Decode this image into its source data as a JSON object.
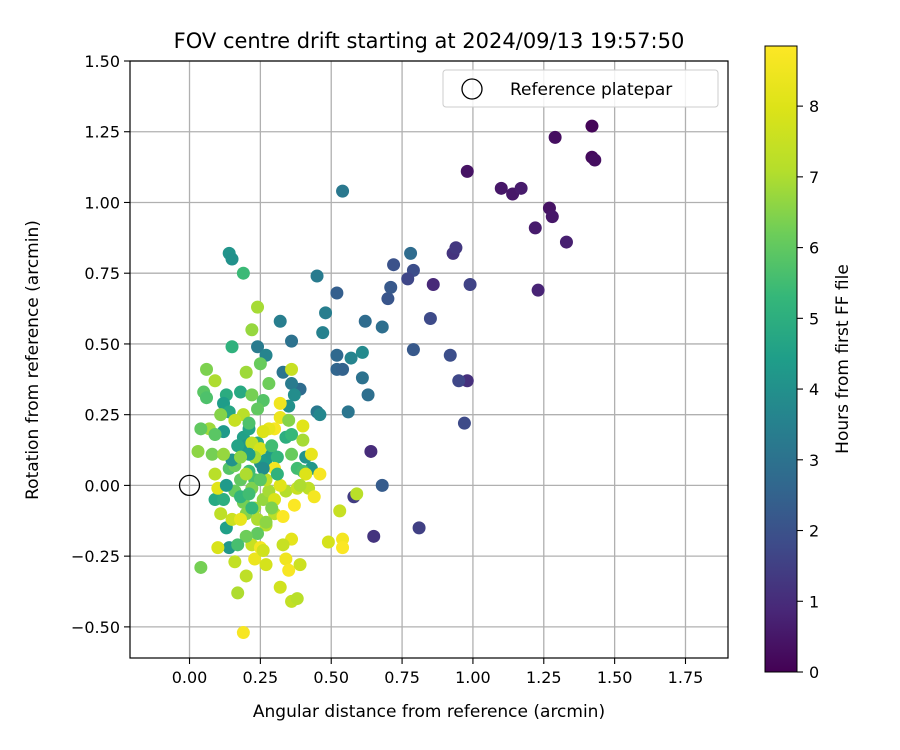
{
  "chart_data": {
    "type": "scatter",
    "title": "FOV centre drift starting at 2024/09/13 19:57:50",
    "xlabel": "Angular distance from reference (arcmin)",
    "ylabel": "Rotation from reference (arcmin)",
    "xlim": [
      -0.21,
      1.9
    ],
    "ylim": [
      -0.61,
      1.5
    ],
    "xticks": [
      "0.00",
      "0.25",
      "0.50",
      "0.75",
      "1.00",
      "1.25",
      "1.50",
      "1.75"
    ],
    "xtick_values": [
      0,
      0.25,
      0.5,
      0.75,
      1.0,
      1.25,
      1.5,
      1.75
    ],
    "yticks": [
      "1.50",
      "1.25",
      "1.00",
      "0.75",
      "0.50",
      "0.25",
      "0.00",
      "−0.25",
      "−0.50"
    ],
    "ytick_values": [
      1.5,
      1.25,
      1.0,
      0.75,
      0.5,
      0.25,
      0.0,
      -0.25,
      -0.5
    ],
    "grid": true,
    "legend": {
      "position": "top-right",
      "label": "Reference platepar"
    },
    "reference_point": {
      "x": 0.0,
      "y": 0.0
    },
    "colorbar": {
      "label": "Hours from first FF file",
      "min": 0,
      "max": 8.85,
      "ticks": [
        "0",
        "1",
        "2",
        "3",
        "4",
        "5",
        "6",
        "7",
        "8"
      ],
      "tick_values": [
        0,
        1,
        2,
        3,
        4,
        5,
        6,
        7,
        8
      ],
      "colormap": "viridis"
    },
    "points": [
      {
        "x": 1.42,
        "y": 1.27,
        "h": 0.1
      },
      {
        "x": 1.42,
        "y": 1.16,
        "h": 0.2
      },
      {
        "x": 1.43,
        "y": 1.15,
        "h": 0.3
      },
      {
        "x": 1.29,
        "y": 1.23,
        "h": 0.3
      },
      {
        "x": 0.98,
        "y": 1.11,
        "h": 0.4
      },
      {
        "x": 1.1,
        "y": 1.05,
        "h": 0.5
      },
      {
        "x": 1.14,
        "y": 1.03,
        "h": 0.5
      },
      {
        "x": 1.17,
        "y": 1.05,
        "h": 0.6
      },
      {
        "x": 1.27,
        "y": 0.98,
        "h": 0.4
      },
      {
        "x": 1.28,
        "y": 0.95,
        "h": 0.5
      },
      {
        "x": 1.22,
        "y": 0.91,
        "h": 0.6
      },
      {
        "x": 1.33,
        "y": 0.86,
        "h": 0.7
      },
      {
        "x": 1.23,
        "y": 0.69,
        "h": 0.8
      },
      {
        "x": 0.86,
        "y": 0.71,
        "h": 0.9
      },
      {
        "x": 0.93,
        "y": 0.82,
        "h": 1.2
      },
      {
        "x": 0.94,
        "y": 0.84,
        "h": 1.3
      },
      {
        "x": 0.98,
        "y": 0.37,
        "h": 1.1
      },
      {
        "x": 0.64,
        "y": 0.12,
        "h": 1.0
      },
      {
        "x": 0.65,
        "y": -0.18,
        "h": 1.2
      },
      {
        "x": 0.58,
        "y": -0.04,
        "h": 1.4
      },
      {
        "x": 0.81,
        "y": -0.15,
        "h": 1.5
      },
      {
        "x": 0.99,
        "y": 0.71,
        "h": 1.6
      },
      {
        "x": 0.95,
        "y": 0.37,
        "h": 1.7
      },
      {
        "x": 0.97,
        "y": 0.22,
        "h": 1.8
      },
      {
        "x": 0.92,
        "y": 0.46,
        "h": 1.9
      },
      {
        "x": 0.85,
        "y": 0.59,
        "h": 1.8
      },
      {
        "x": 0.79,
        "y": 0.76,
        "h": 1.9
      },
      {
        "x": 0.77,
        "y": 0.73,
        "h": 1.7
      },
      {
        "x": 0.72,
        "y": 0.78,
        "h": 2.0
      },
      {
        "x": 0.7,
        "y": 0.66,
        "h": 2.1
      },
      {
        "x": 0.71,
        "y": 0.7,
        "h": 2.2
      },
      {
        "x": 0.79,
        "y": 0.48,
        "h": 2.2
      },
      {
        "x": 0.68,
        "y": 0.0,
        "h": 2.3
      },
      {
        "x": 0.52,
        "y": 0.68,
        "h": 2.4
      },
      {
        "x": 0.78,
        "y": 0.82,
        "h": 2.8
      },
      {
        "x": 0.68,
        "y": 0.56,
        "h": 2.9
      },
      {
        "x": 0.62,
        "y": 0.58,
        "h": 2.8
      },
      {
        "x": 0.52,
        "y": 0.46,
        "h": 2.7
      },
      {
        "x": 0.52,
        "y": 0.41,
        "h": 2.6
      },
      {
        "x": 0.54,
        "y": 0.41,
        "h": 2.5
      },
      {
        "x": 0.61,
        "y": 0.38,
        "h": 3.0
      },
      {
        "x": 0.63,
        "y": 0.32,
        "h": 2.9
      },
      {
        "x": 0.56,
        "y": 0.26,
        "h": 3.1
      },
      {
        "x": 0.54,
        "y": 1.04,
        "h": 3.2
      },
      {
        "x": 0.45,
        "y": 0.74,
        "h": 3.3
      },
      {
        "x": 0.48,
        "y": 0.61,
        "h": 3.4
      },
      {
        "x": 0.47,
        "y": 0.54,
        "h": 3.5
      },
      {
        "x": 0.57,
        "y": 0.45,
        "h": 3.6
      },
      {
        "x": 0.61,
        "y": 0.47,
        "h": 3.8
      },
      {
        "x": 0.45,
        "y": 0.26,
        "h": 3.2
      },
      {
        "x": 0.46,
        "y": 0.25,
        "h": 3.7
      },
      {
        "x": 0.39,
        "y": 0.34,
        "h": 2.8
      },
      {
        "x": 0.36,
        "y": 0.51,
        "h": 3.0
      },
      {
        "x": 0.33,
        "y": 0.4,
        "h": 3.1
      },
      {
        "x": 0.36,
        "y": 0.36,
        "h": 3.3
      },
      {
        "x": 0.32,
        "y": 0.58,
        "h": 3.4
      },
      {
        "x": 0.24,
        "y": 0.49,
        "h": 3.3
      },
      {
        "x": 0.27,
        "y": 0.46,
        "h": 3.6
      },
      {
        "x": 0.37,
        "y": 0.32,
        "h": 3.9
      },
      {
        "x": 0.35,
        "y": 0.28,
        "h": 4.0
      },
      {
        "x": 0.41,
        "y": 0.1,
        "h": 4.1
      },
      {
        "x": 0.43,
        "y": 0.06,
        "h": 4.2
      },
      {
        "x": 0.14,
        "y": 0.82,
        "h": 4.1
      },
      {
        "x": 0.15,
        "y": 0.8,
        "h": 4.0
      },
      {
        "x": 0.19,
        "y": 0.75,
        "h": 5.4
      },
      {
        "x": 0.15,
        "y": 0.49,
        "h": 5.1
      },
      {
        "x": 0.18,
        "y": 0.33,
        "h": 4.8
      },
      {
        "x": 0.13,
        "y": 0.32,
        "h": 4.9
      },
      {
        "x": 0.12,
        "y": 0.29,
        "h": 4.4
      },
      {
        "x": 0.14,
        "y": 0.26,
        "h": 4.7
      },
      {
        "x": 0.12,
        "y": 0.19,
        "h": 4.3
      },
      {
        "x": 0.19,
        "y": 0.17,
        "h": 4.5
      },
      {
        "x": 0.21,
        "y": 0.2,
        "h": 4.6
      },
      {
        "x": 0.2,
        "y": 0.14,
        "h": 4.2
      },
      {
        "x": 0.24,
        "y": 0.15,
        "h": 4.9
      },
      {
        "x": 0.25,
        "y": 0.08,
        "h": 4.0
      },
      {
        "x": 0.27,
        "y": 0.09,
        "h": 4.4
      },
      {
        "x": 0.29,
        "y": 0.11,
        "h": 4.3
      },
      {
        "x": 0.31,
        "y": 0.1,
        "h": 5.2
      },
      {
        "x": 0.34,
        "y": 0.17,
        "h": 5.0
      },
      {
        "x": 0.36,
        "y": 0.18,
        "h": 5.3
      },
      {
        "x": 0.38,
        "y": 0.06,
        "h": 5.5
      },
      {
        "x": 0.4,
        "y": 0.05,
        "h": 5.6
      },
      {
        "x": 0.26,
        "y": 0.3,
        "h": 5.8
      },
      {
        "x": 0.28,
        "y": 0.36,
        "h": 6.2
      },
      {
        "x": 0.25,
        "y": 0.43,
        "h": 6.1
      },
      {
        "x": 0.24,
        "y": 0.63,
        "h": 6.9
      },
      {
        "x": 0.22,
        "y": 0.55,
        "h": 6.7
      },
      {
        "x": 0.06,
        "y": 0.41,
        "h": 6.4
      },
      {
        "x": 0.05,
        "y": 0.33,
        "h": 5.9
      },
      {
        "x": 0.06,
        "y": 0.31,
        "h": 5.7
      },
      {
        "x": 0.09,
        "y": 0.37,
        "h": 7.0
      },
      {
        "x": 0.11,
        "y": 0.25,
        "h": 6.5
      },
      {
        "x": 0.07,
        "y": 0.2,
        "h": 6.8
      },
      {
        "x": 0.04,
        "y": 0.2,
        "h": 6.0
      },
      {
        "x": 0.09,
        "y": 0.18,
        "h": 5.9
      },
      {
        "x": 0.08,
        "y": 0.11,
        "h": 6.3
      },
      {
        "x": 0.03,
        "y": 0.12,
        "h": 6.6
      },
      {
        "x": 0.09,
        "y": 0.04,
        "h": 7.2
      },
      {
        "x": 0.14,
        "y": 0.06,
        "h": 5.8
      },
      {
        "x": 0.16,
        "y": 0.07,
        "h": 6.2
      },
      {
        "x": 0.18,
        "y": 0.02,
        "h": 6.0
      },
      {
        "x": 0.21,
        "y": 0.05,
        "h": 5.4
      },
      {
        "x": 0.23,
        "y": 0.02,
        "h": 5.6
      },
      {
        "x": 0.22,
        "y": -0.01,
        "h": 6.4
      },
      {
        "x": 0.09,
        "y": -0.05,
        "h": 4.8
      },
      {
        "x": 0.12,
        "y": -0.05,
        "h": 5.0
      },
      {
        "x": 0.16,
        "y": -0.02,
        "h": 6.1
      },
      {
        "x": 0.19,
        "y": -0.06,
        "h": 6.3
      },
      {
        "x": 0.2,
        "y": -0.1,
        "h": 6.5
      },
      {
        "x": 0.23,
        "y": -0.08,
        "h": 6.8
      },
      {
        "x": 0.26,
        "y": -0.05,
        "h": 6.7
      },
      {
        "x": 0.28,
        "y": -0.02,
        "h": 6.9
      },
      {
        "x": 0.24,
        "y": -0.12,
        "h": 7.0
      },
      {
        "x": 0.27,
        "y": -0.14,
        "h": 7.1
      },
      {
        "x": 0.3,
        "y": -0.1,
        "h": 7.2
      },
      {
        "x": 0.13,
        "y": -0.15,
        "h": 4.5
      },
      {
        "x": 0.14,
        "y": -0.22,
        "h": 4.2
      },
      {
        "x": 0.15,
        "y": -0.12,
        "h": 7.6
      },
      {
        "x": 0.18,
        "y": -0.12,
        "h": 8.3
      },
      {
        "x": 0.1,
        "y": -0.22,
        "h": 7.9
      },
      {
        "x": 0.16,
        "y": -0.27,
        "h": 7.4
      },
      {
        "x": 0.04,
        "y": -0.29,
        "h": 6.3
      },
      {
        "x": 0.17,
        "y": -0.38,
        "h": 7.0
      },
      {
        "x": 0.2,
        "y": -0.32,
        "h": 7.3
      },
      {
        "x": 0.19,
        "y": -0.52,
        "h": 8.7
      },
      {
        "x": 0.22,
        "y": -0.21,
        "h": 7.5
      },
      {
        "x": 0.23,
        "y": -0.26,
        "h": 8.4
      },
      {
        "x": 0.25,
        "y": -0.22,
        "h": 8.6
      },
      {
        "x": 0.27,
        "y": -0.28,
        "h": 7.8
      },
      {
        "x": 0.32,
        "y": -0.36,
        "h": 7.7
      },
      {
        "x": 0.34,
        "y": -0.26,
        "h": 8.5
      },
      {
        "x": 0.35,
        "y": -0.3,
        "h": 8.7
      },
      {
        "x": 0.36,
        "y": -0.41,
        "h": 7.4
      },
      {
        "x": 0.38,
        "y": -0.4,
        "h": 7.2
      },
      {
        "x": 0.36,
        "y": -0.19,
        "h": 8.2
      },
      {
        "x": 0.39,
        "y": -0.28,
        "h": 7.6
      },
      {
        "x": 0.33,
        "y": -0.21,
        "h": 7.5
      },
      {
        "x": 0.37,
        "y": -0.07,
        "h": 8.8
      },
      {
        "x": 0.34,
        "y": -0.02,
        "h": 7.1
      },
      {
        "x": 0.32,
        "y": 0.0,
        "h": 8.1
      },
      {
        "x": 0.3,
        "y": 0.06,
        "h": 8.6
      },
      {
        "x": 0.32,
        "y": 0.24,
        "h": 8.4
      },
      {
        "x": 0.32,
        "y": 0.29,
        "h": 8.5
      },
      {
        "x": 0.3,
        "y": 0.2,
        "h": 8.7
      },
      {
        "x": 0.28,
        "y": 0.2,
        "h": 8.3
      },
      {
        "x": 0.26,
        "y": 0.19,
        "h": 8.0
      },
      {
        "x": 0.22,
        "y": 0.15,
        "h": 7.4
      },
      {
        "x": 0.25,
        "y": 0.13,
        "h": 7.8
      },
      {
        "x": 0.19,
        "y": 0.25,
        "h": 7.2
      },
      {
        "x": 0.16,
        "y": 0.23,
        "h": 7.5
      },
      {
        "x": 0.2,
        "y": 0.04,
        "h": 7.0
      },
      {
        "x": 0.23,
        "y": 0.1,
        "h": 6.9
      },
      {
        "x": 0.27,
        "y": 0.02,
        "h": 7.3
      },
      {
        "x": 0.3,
        "y": -0.05,
        "h": 7.9
      },
      {
        "x": 0.33,
        "y": -0.11,
        "h": 8.8
      },
      {
        "x": 0.38,
        "y": -0.01,
        "h": 7.5
      },
      {
        "x": 0.41,
        "y": 0.04,
        "h": 8.0
      },
      {
        "x": 0.42,
        "y": -0.01,
        "h": 7.3
      },
      {
        "x": 0.44,
        "y": -0.04,
        "h": 8.6
      },
      {
        "x": 0.43,
        "y": 0.11,
        "h": 8.3
      },
      {
        "x": 0.4,
        "y": 0.21,
        "h": 8.1
      },
      {
        "x": 0.36,
        "y": 0.41,
        "h": 7.5
      },
      {
        "x": 0.39,
        "y": 0.0,
        "h": 7.0
      },
      {
        "x": 0.46,
        "y": 0.04,
        "h": 8.7
      },
      {
        "x": 0.49,
        "y": -0.2,
        "h": 7.8
      },
      {
        "x": 0.53,
        "y": -0.09,
        "h": 7.5
      },
      {
        "x": 0.54,
        "y": -0.19,
        "h": 8.6
      },
      {
        "x": 0.54,
        "y": -0.22,
        "h": 8.8
      },
      {
        "x": 0.59,
        "y": -0.03,
        "h": 7.2
      },
      {
        "x": 0.11,
        "y": -0.1,
        "h": 7.3
      },
      {
        "x": 0.1,
        "y": -0.01,
        "h": 8.1
      },
      {
        "x": 0.26,
        "y": -0.23,
        "h": 7.7
      },
      {
        "x": 0.27,
        "y": -0.13,
        "h": 6.6
      },
      {
        "x": 0.21,
        "y": 0.22,
        "h": 5.7
      },
      {
        "x": 0.24,
        "y": 0.27,
        "h": 6.0
      },
      {
        "x": 0.2,
        "y": 0.4,
        "h": 6.8
      },
      {
        "x": 0.36,
        "y": 0.11,
        "h": 6.1
      },
      {
        "x": 0.29,
        "y": 0.14,
        "h": 5.5
      },
      {
        "x": 0.31,
        "y": 0.04,
        "h": 5.1
      },
      {
        "x": 0.21,
        "y": 0.11,
        "h": 4.4
      },
      {
        "x": 0.17,
        "y": 0.14,
        "h": 4.6
      },
      {
        "x": 0.26,
        "y": 0.06,
        "h": 3.9
      },
      {
        "x": 0.15,
        "y": 0.09,
        "h": 4.1
      },
      {
        "x": 0.13,
        "y": 0.0,
        "h": 4.3
      },
      {
        "x": 0.18,
        "y": -0.04,
        "h": 5.2
      },
      {
        "x": 0.21,
        "y": -0.03,
        "h": 5.5
      },
      {
        "x": 0.25,
        "y": 0.02,
        "h": 5.9
      },
      {
        "x": 0.29,
        "y": -0.08,
        "h": 6.4
      },
      {
        "x": 0.24,
        "y": -0.17,
        "h": 6.0
      },
      {
        "x": 0.2,
        "y": -0.18,
        "h": 6.2
      },
      {
        "x": 0.22,
        "y": -0.08,
        "h": 5.3
      },
      {
        "x": 0.17,
        "y": -0.21,
        "h": 5.6
      },
      {
        "x": 0.12,
        "y": 0.11,
        "h": 6.7
      },
      {
        "x": 0.35,
        "y": 0.23,
        "h": 6.5
      },
      {
        "x": 0.4,
        "y": 0.16,
        "h": 6.9
      },
      {
        "x": 0.22,
        "y": 0.32,
        "h": 6.3
      },
      {
        "x": 0.18,
        "y": 0.1,
        "h": 6.6
      }
    ]
  }
}
